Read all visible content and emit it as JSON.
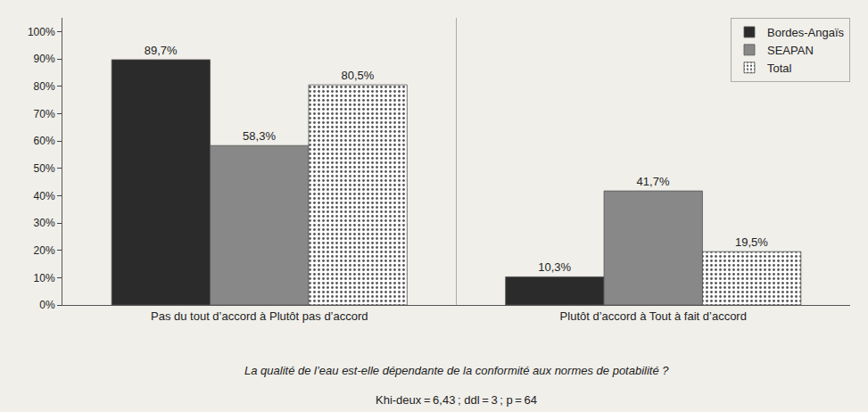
{
  "chart_data": {
    "type": "bar",
    "categories": [
      "Pas du tout d’accord à Plutôt pas d’accord",
      "Plutôt d’accord à Tout à fait d’accord"
    ],
    "series": [
      {
        "name": "Bordes-Angaïs",
        "color": "#2b2b2b",
        "values": [
          89.7,
          10.3
        ],
        "value_labels": [
          "89,7%",
          "10,3%"
        ]
      },
      {
        "name": "SEAPAN",
        "color": "#888888",
        "values": [
          58.3,
          41.7
        ],
        "value_labels": [
          "58,3%",
          "41,7%"
        ]
      },
      {
        "name": "Total",
        "color": "white",
        "values": [
          80.5,
          19.5
        ],
        "value_labels": [
          "80,5%",
          "19,5%"
        ]
      }
    ],
    "subtitle": "La qualité de l’eau est-elle dépendante de la conformité aux normes de potabilité ?",
    "annotations": [
      "Khi-deux = 6,43 ; ddl = 3 ; p = 64"
    ],
    "ylim": [
      0,
      105
    ],
    "yticks": [
      {
        "value": 0,
        "label": "0%"
      },
      {
        "value": 10,
        "label": "10%"
      },
      {
        "value": 20,
        "label": "20%"
      },
      {
        "value": 30,
        "label": "30%"
      },
      {
        "value": 40,
        "label": "40%"
      },
      {
        "value": 50,
        "label": "50%"
      },
      {
        "value": 60,
        "label": "60%"
      },
      {
        "value": 70,
        "label": "70%"
      },
      {
        "value": 80,
        "label": "80%"
      },
      {
        "value": 90,
        "label": "90%"
      },
      {
        "value": 100,
        "label": "100%"
      }
    ],
    "data_labels": true,
    "grid": false,
    "legend": "upper right"
  }
}
